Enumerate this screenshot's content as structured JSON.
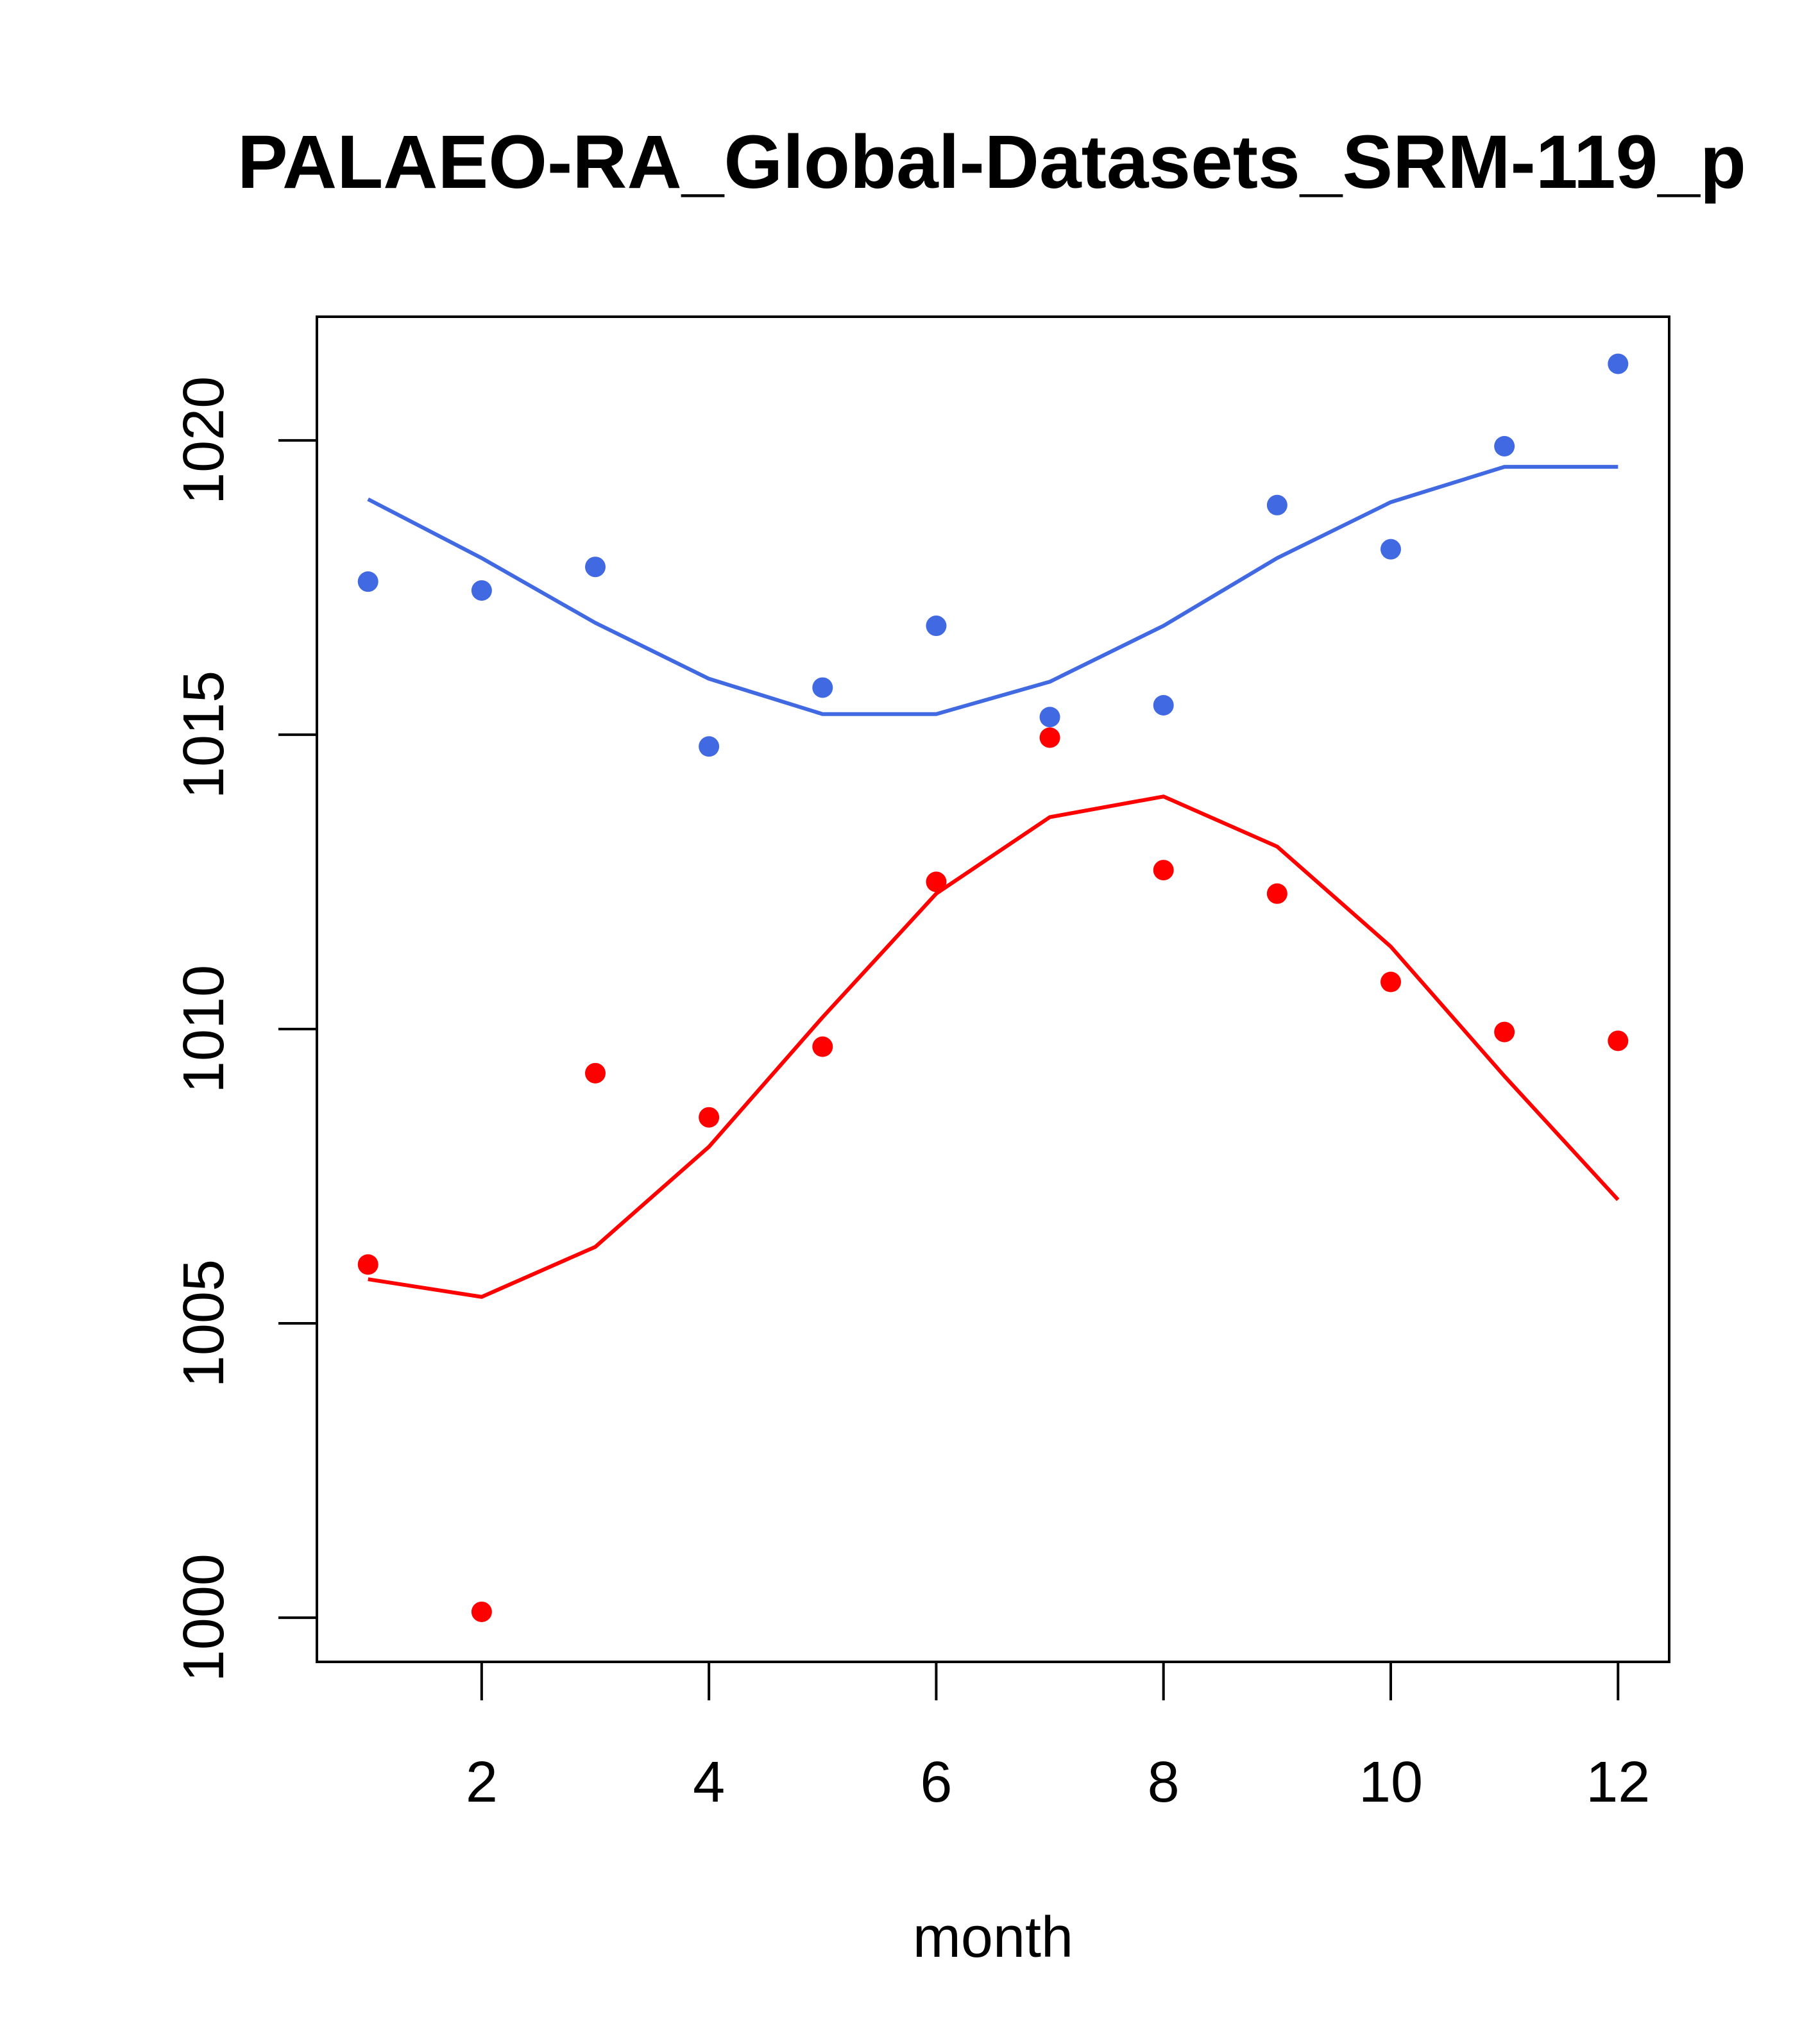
{
  "chart_data": {
    "type": "scatter",
    "title": "PALAEO-RA_Global-Datasets_SRM-119_p",
    "xlabel": "month",
    "ylabel": "",
    "xlim": [
      0.55,
      12.45
    ],
    "ylim": [
      999.25,
      1022.1
    ],
    "x_ticks": [
      2,
      4,
      6,
      8,
      10,
      12
    ],
    "y_ticks": [
      1000,
      1005,
      1010,
      1015,
      1020
    ],
    "x": [
      1,
      2,
      3,
      4,
      5,
      6,
      7,
      8,
      9,
      10,
      11,
      12
    ],
    "series": [
      {
        "name": "blue-points",
        "color": "#4169e1",
        "kind": "points",
        "values": [
          1017.6,
          1017.45,
          1017.85,
          1014.8,
          1015.8,
          1016.85,
          1015.3,
          1015.5,
          1018.9,
          1018.15,
          1019.9,
          1021.3
        ]
      },
      {
        "name": "blue-line",
        "color": "#4169e1",
        "kind": "line",
        "values": [
          1019.0,
          1018.0,
          1016.9,
          1015.95,
          1015.35,
          1015.35,
          1015.9,
          1016.85,
          1018.0,
          1018.95,
          1019.55,
          1019.55
        ]
      },
      {
        "name": "red-points",
        "color": "#ff0000",
        "kind": "points",
        "values": [
          1006.0,
          1000.1,
          1009.25,
          1008.5,
          1009.7,
          1012.5,
          1014.95,
          1012.7,
          1012.3,
          1010.8,
          1009.95,
          1009.8
        ]
      },
      {
        "name": "red-line",
        "color": "#ff0000",
        "kind": "line",
        "values": [
          1005.75,
          1005.45,
          1006.3,
          1008.0,
          1010.2,
          1012.3,
          1013.6,
          1013.95,
          1013.1,
          1011.4,
          1009.2,
          1007.1
        ]
      }
    ]
  }
}
